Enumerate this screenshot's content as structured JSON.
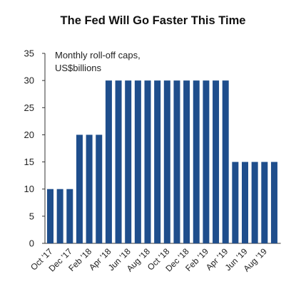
{
  "chart_data": {
    "type": "bar",
    "title": "The Fed Will Go Faster This Time",
    "ylabel_lines": [
      "Monthly roll-off caps,",
      "US$billions"
    ],
    "xlabel": "",
    "ylim": [
      0,
      35
    ],
    "yticks": [
      0,
      5,
      10,
      15,
      20,
      25,
      30,
      35
    ],
    "grid": false,
    "bar_color": "#1f4e8c",
    "categories": [
      "Oct '17",
      "Nov '17",
      "Dec '17",
      "Jan '18",
      "Feb '18",
      "Mar '18",
      "Apr '18",
      "May '18",
      "Jun '18",
      "Jul '18",
      "Aug '18",
      "Sep '18",
      "Oct '18",
      "Nov '18",
      "Dec '18",
      "Jan '19",
      "Feb '19",
      "Mar '19",
      "Apr '19",
      "May '19",
      "Jun '19",
      "Jul '19",
      "Aug '19",
      "Sep '19"
    ],
    "values": [
      10,
      10,
      10,
      20,
      20,
      20,
      30,
      30,
      30,
      30,
      30,
      30,
      30,
      30,
      30,
      30,
      30,
      30,
      30,
      15,
      15,
      15,
      15,
      15
    ],
    "tick_labels": [
      "Oct '17",
      "Dec '17",
      "Feb '18",
      "Apr '18",
      "Jun '18",
      "Aug '18",
      "Oct '18",
      "Dec '18",
      "Feb '19",
      "Apr '19",
      "Jun '19",
      "Aug '19"
    ]
  }
}
